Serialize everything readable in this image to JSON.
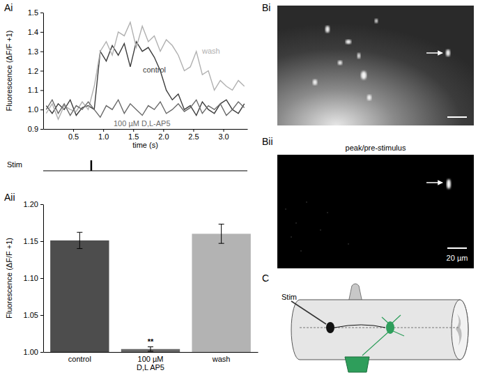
{
  "chart_data": [
    {
      "type": "line",
      "xlabel": "time (s)",
      "ylabel": "Fluorescence (ΔF/F +1)",
      "x": [
        0.05,
        0.15,
        0.25,
        0.35,
        0.45,
        0.55,
        0.65,
        0.75,
        0.85,
        0.95,
        1.05,
        1.15,
        1.25,
        1.35,
        1.45,
        1.55,
        1.65,
        1.75,
        1.85,
        1.95,
        2.05,
        2.15,
        2.25,
        2.35,
        2.45,
        2.55,
        2.65,
        2.75,
        2.85,
        2.95,
        3.05,
        3.15,
        3.25,
        3.35
      ],
      "series": [
        {
          "name": "control",
          "color": "#3c3c3c",
          "values": [
            1.02,
            0.98,
            1.03,
            1.0,
            1.05,
            0.97,
            1.01,
            1.02,
            1.0,
            1.3,
            1.25,
            1.33,
            1.28,
            1.34,
            1.22,
            1.35,
            1.3,
            1.32,
            1.27,
            1.2,
            1.1,
            1.05,
            1.08,
            1.0,
            1.02,
            0.97,
            1.04,
            1.0,
            0.98,
            1.03,
            1.05,
            1.0,
            0.98,
            1.03
          ]
        },
        {
          "name": "wash",
          "color": "#b0b0b0",
          "values": [
            0.98,
            1.03,
            0.95,
            1.02,
            1.0,
            0.99,
            1.04,
            1.0,
            1.12,
            1.3,
            1.35,
            1.28,
            1.4,
            1.38,
            1.45,
            1.32,
            1.43,
            1.35,
            1.38,
            1.3,
            1.36,
            1.33,
            1.28,
            1.2,
            1.22,
            1.3,
            1.18,
            1.2,
            1.1,
            1.15,
            1.12,
            1.1,
            1.15,
            1.12
          ]
        },
        {
          "name": "100 µM D,L-AP5",
          "color": "#6a6a6a",
          "values": [
            1.0,
            1.05,
            0.98,
            1.03,
            0.97,
            1.02,
            1.0,
            1.04,
            1.0,
            0.96,
            1.02,
            1.0,
            1.05,
            0.98,
            1.03,
            1.0,
            0.97,
            1.02,
            1.0,
            1.04,
            0.98,
            1.0,
            1.03,
            0.99,
            1.01,
            1.05,
            0.98,
            1.02,
            1.0,
            1.03,
            0.97,
            1.0,
            1.04,
            1.01
          ]
        }
      ],
      "xlim": [
        0,
        3.4
      ],
      "ylim": [
        0.9,
        1.5
      ],
      "xticks": [
        0.5,
        {
          "value": 1,
          "label": "1.0"
        },
        1.5,
        {
          "value": 2,
          "label": "2.0"
        },
        2.5,
        {
          "value": 3,
          "label": "3.0"
        }
      ],
      "yticks": [
        0.9,
        {
          "value": 1,
          "label": "1.0"
        },
        1.1,
        1.2,
        1.3,
        1.4,
        1.5
      ],
      "stimulus": {
        "label": "Stim",
        "time": 0.8
      }
    },
    {
      "type": "bar",
      "ylabel": "Fluorescence (ΔF/F +1)",
      "categories": [
        "control",
        "100 µM D,L AP5",
        "wash"
      ],
      "values": [
        1.151,
        1.004,
        1.16
      ],
      "errors": [
        0.011,
        0.003,
        0.013
      ],
      "colors": [
        "#4d4d4d",
        "#6a6a6a",
        "#b3b3b3"
      ],
      "ylim": [
        1,
        1.2
      ],
      "yticks": [
        {
          "value": 1,
          "label": "1.00"
        },
        1.05,
        {
          "value": 1.1,
          "label": "1.10"
        },
        1.15,
        {
          "value": 1.2,
          "label": "1.20"
        }
      ],
      "annotations": [
        {
          "text": "**",
          "category": "100 µM D,L AP5"
        }
      ]
    }
  ],
  "figure": {
    "panel_labels": [
      "Ai",
      "Aii",
      "Bi",
      "Bii",
      "C"
    ],
    "bii_title": "peak/pre-stimulus",
    "scale_bar": "20 µm",
    "diagram_stim": "Stim"
  }
}
